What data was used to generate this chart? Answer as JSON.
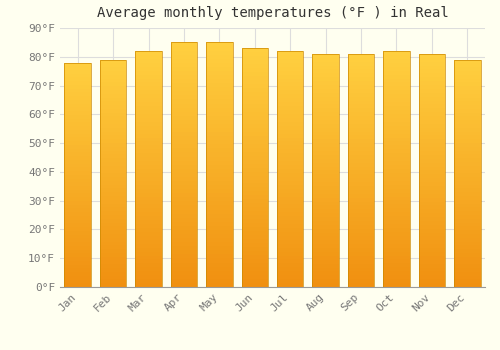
{
  "title": "Average monthly temperatures (°F ) in Real",
  "months": [
    "Jan",
    "Feb",
    "Mar",
    "Apr",
    "May",
    "Jun",
    "Jul",
    "Aug",
    "Sep",
    "Oct",
    "Nov",
    "Dec"
  ],
  "values": [
    78,
    79,
    82,
    85,
    85,
    83,
    82,
    81,
    81,
    82,
    81,
    79
  ],
  "bar_color_top": "#FFD040",
  "bar_color_bottom": "#F09010",
  "bar_edge_color": "#CC8800",
  "background_color": "#FFFFF0",
  "grid_color": "#DDDDDD",
  "ylim": [
    0,
    90
  ],
  "yticks": [
    0,
    10,
    20,
    30,
    40,
    50,
    60,
    70,
    80,
    90
  ],
  "ylabel_suffix": "°F",
  "title_fontsize": 10,
  "tick_fontsize": 8,
  "font_family": "monospace",
  "bar_width": 0.75
}
